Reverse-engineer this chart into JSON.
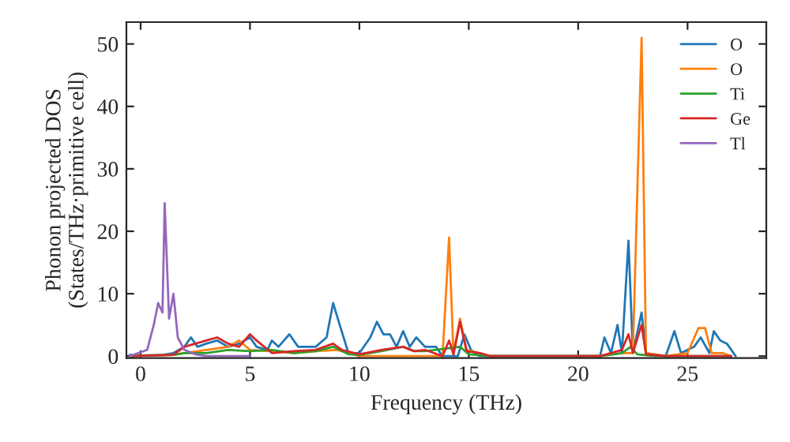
{
  "chart_data": {
    "type": "line",
    "xlabel": "Frequency (THz)",
    "ylabel": "Phonon projected DOS\n(States/THz·primitive cell)",
    "xlim": [
      -0.65,
      28.6
    ],
    "ylim": [
      -0.3,
      53.5
    ],
    "xticks": [
      0,
      5,
      10,
      15,
      20,
      25
    ],
    "yticks": [
      0,
      10,
      20,
      30,
      40,
      50
    ],
    "grid": false,
    "legend": "top right",
    "series": [
      {
        "name": "O",
        "color": "#1f77b4",
        "x": [
          -0.5,
          0,
          1,
          1.5,
          2,
          2.3,
          2.6,
          3,
          3.5,
          4,
          4.5,
          5,
          5.3,
          5.8,
          6,
          6.3,
          6.8,
          7.2,
          8,
          8.5,
          8.8,
          9.1,
          9.5,
          10,
          10.5,
          10.8,
          11.1,
          11.4,
          11.7,
          12,
          12.3,
          12.6,
          13,
          13.5,
          13.8,
          14.5,
          14.8,
          15.1,
          15.5,
          21,
          21.2,
          21.5,
          21.8,
          22,
          22.3,
          22.5,
          22.9,
          23.1,
          24,
          24.4,
          24.7,
          25.3,
          25.6,
          26,
          26.2,
          26.5,
          26.8,
          27.2
        ],
        "values": [
          0.2,
          0.1,
          0.2,
          0.5,
          1.5,
          3,
          1.5,
          2,
          2.5,
          1.5,
          2,
          3,
          1.5,
          1,
          2.5,
          1.5,
          3.5,
          1.5,
          1.5,
          3,
          8.5,
          5,
          0.5,
          0.5,
          3,
          5.5,
          3.5,
          3.5,
          1.5,
          4,
          1.5,
          3,
          1.5,
          1.5,
          0,
          0,
          3.5,
          1,
          0,
          0,
          3,
          0.5,
          5,
          0.5,
          18.5,
          0.5,
          7,
          0.5,
          0,
          4,
          0.5,
          1.5,
          3,
          0.5,
          4,
          2.5,
          2,
          0
        ]
      },
      {
        "name": "O",
        "color": "#ff7f0e",
        "x": [
          -0.5,
          1.5,
          2,
          3,
          4,
          4.5,
          5,
          6,
          7,
          8,
          9,
          10,
          13.8,
          14.1,
          14.3,
          14.6,
          14.9,
          15.5,
          16,
          21,
          22,
          22.5,
          22.9,
          23.1,
          24,
          25,
          25.5,
          25.8,
          26.1,
          26.6,
          27
        ],
        "values": [
          0,
          0.2,
          0.5,
          1,
          1.5,
          2.5,
          1,
          0.8,
          0.5,
          0.8,
          1,
          0,
          0,
          19,
          0.3,
          6,
          1,
          0.5,
          0,
          0,
          0.5,
          0.5,
          51,
          0.5,
          0,
          0.5,
          4.5,
          4.5,
          0.5,
          0.5,
          0
        ]
      },
      {
        "name": "Ti",
        "color": "#2ca02c",
        "x": [
          -0.5,
          1.5,
          2,
          3,
          4,
          5,
          6,
          7,
          8,
          8.8,
          9.5,
          10,
          11,
          12,
          12.5,
          13,
          14.6,
          15,
          16,
          21,
          22,
          22.4,
          22.7,
          23.5,
          27
        ],
        "values": [
          0,
          0.2,
          0.5,
          0.5,
          1,
          0.8,
          1,
          0.5,
          0.8,
          1.5,
          0.3,
          0.2,
          0.8,
          1.5,
          0.8,
          0.8,
          1.5,
          0.3,
          0,
          0,
          0.5,
          1.5,
          0.3,
          0,
          0
        ]
      },
      {
        "name": "Ge",
        "color": "#d62728",
        "x": [
          -0.5,
          1.5,
          2,
          2.5,
          3,
          3.5,
          4,
          4.5,
          5,
          5.3,
          6,
          7,
          8,
          8.8,
          9.2,
          10,
          11,
          12,
          12.5,
          13,
          13.8,
          14.1,
          14.3,
          14.6,
          14.9,
          15.5,
          16,
          21,
          22,
          22.3,
          22.5,
          22.9,
          23.1,
          24,
          27
        ],
        "values": [
          0,
          0.2,
          1.5,
          2,
          2.5,
          3,
          2,
          1.5,
          3.5,
          2.5,
          0.5,
          0.8,
          1,
          2,
          1,
          0.3,
          1,
          1.5,
          0.8,
          1,
          0,
          2.5,
          0.3,
          5.5,
          0.8,
          0.5,
          0,
          0,
          1,
          3.5,
          0.5,
          5,
          0.3,
          0,
          0
        ]
      },
      {
        "name": "Tl",
        "color": "#9467bd",
        "x": [
          -0.5,
          0.3,
          0.6,
          0.8,
          1.0,
          1.1,
          1.3,
          1.5,
          1.7,
          2,
          2.5,
          3,
          5
        ],
        "values": [
          0,
          1,
          5,
          8.5,
          7,
          24.5,
          6,
          10,
          3,
          1,
          0.3,
          0,
          0
        ]
      }
    ]
  }
}
